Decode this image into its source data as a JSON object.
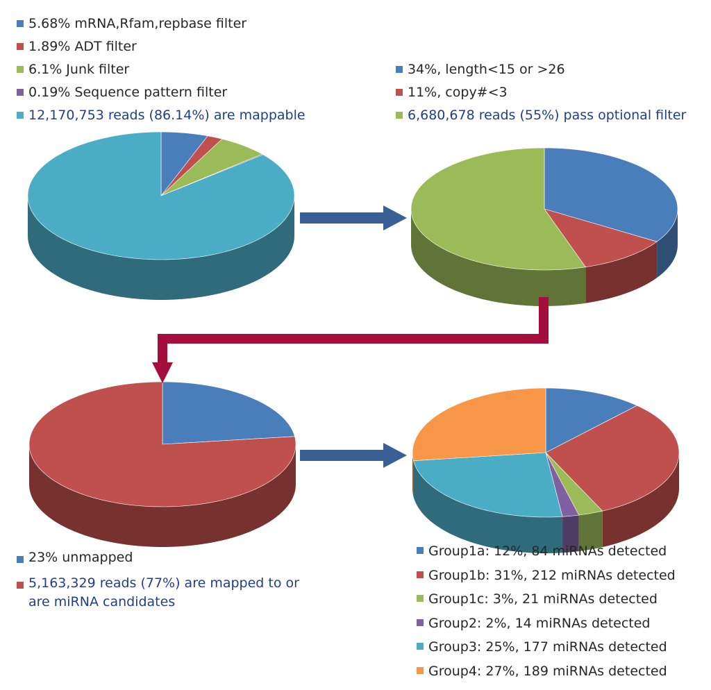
{
  "chart_data": [
    {
      "type": "pie",
      "title": "",
      "slices": [
        {
          "label": "5.68% mRNA,Rfam,repbase filter",
          "value": 5.68,
          "color": "#4a7ebb"
        },
        {
          "label": "1.89% ADT filter",
          "value": 1.89,
          "color": "#c0504d"
        },
        {
          "label": "6.1% Junk filter",
          "value": 6.1,
          "color": "#9bbb59"
        },
        {
          "label": "0.19% Sequence pattern filter",
          "value": 0.19,
          "color": "#7f60a0"
        },
        {
          "label": "12,170,753 reads (86.14%) are mappable",
          "value": 86.14,
          "color": "#4bacc6",
          "highlight": true
        }
      ],
      "legend_position": "top-left"
    },
    {
      "type": "pie",
      "title": "",
      "slices": [
        {
          "label": "34%, length<15 or >26",
          "value": 34,
          "color": "#4a7ebb"
        },
        {
          "label": "11%, copy#<3",
          "value": 11,
          "color": "#c0504d"
        },
        {
          "label": "6,680,678 reads (55%) pass optional filter",
          "value": 55,
          "color": "#9bbb59",
          "highlight": true
        }
      ],
      "legend_position": "top-right"
    },
    {
      "type": "pie",
      "title": "",
      "slices": [
        {
          "label": "23% unmapped",
          "value": 23,
          "color": "#4a7ebb"
        },
        {
          "label": "5,163,329 reads (77%) are mapped to or\nare miRNA candidates",
          "value": 77,
          "color": "#c0504d",
          "highlight": true
        }
      ],
      "legend_position": "bottom-left"
    },
    {
      "type": "pie",
      "title": "",
      "slices": [
        {
          "label": "Group1a: 12%, 84 miRNAs detected",
          "value": 12,
          "color": "#4a7ebb"
        },
        {
          "label": "Group1b: 31%, 212 miRNAs detected",
          "value": 31,
          "color": "#c0504d"
        },
        {
          "label": "Group1c: 3%, 21 miRNAs detected",
          "value": 3,
          "color": "#9bbb59"
        },
        {
          "label": "Group2: 2%, 14 miRNAs detected",
          "value": 2,
          "color": "#7f60a0"
        },
        {
          "label": "Group3: 25%, 177 miRNAs detected",
          "value": 25,
          "color": "#4bacc6"
        },
        {
          "label": "Group4: 27%, 189 miRNAs detected",
          "value": 27,
          "color": "#f79646"
        }
      ],
      "legend_position": "bottom-right"
    }
  ],
  "flow": {
    "blue_arrow_color": "#3a5f95",
    "red_arrow_color": "#a50d3c"
  }
}
